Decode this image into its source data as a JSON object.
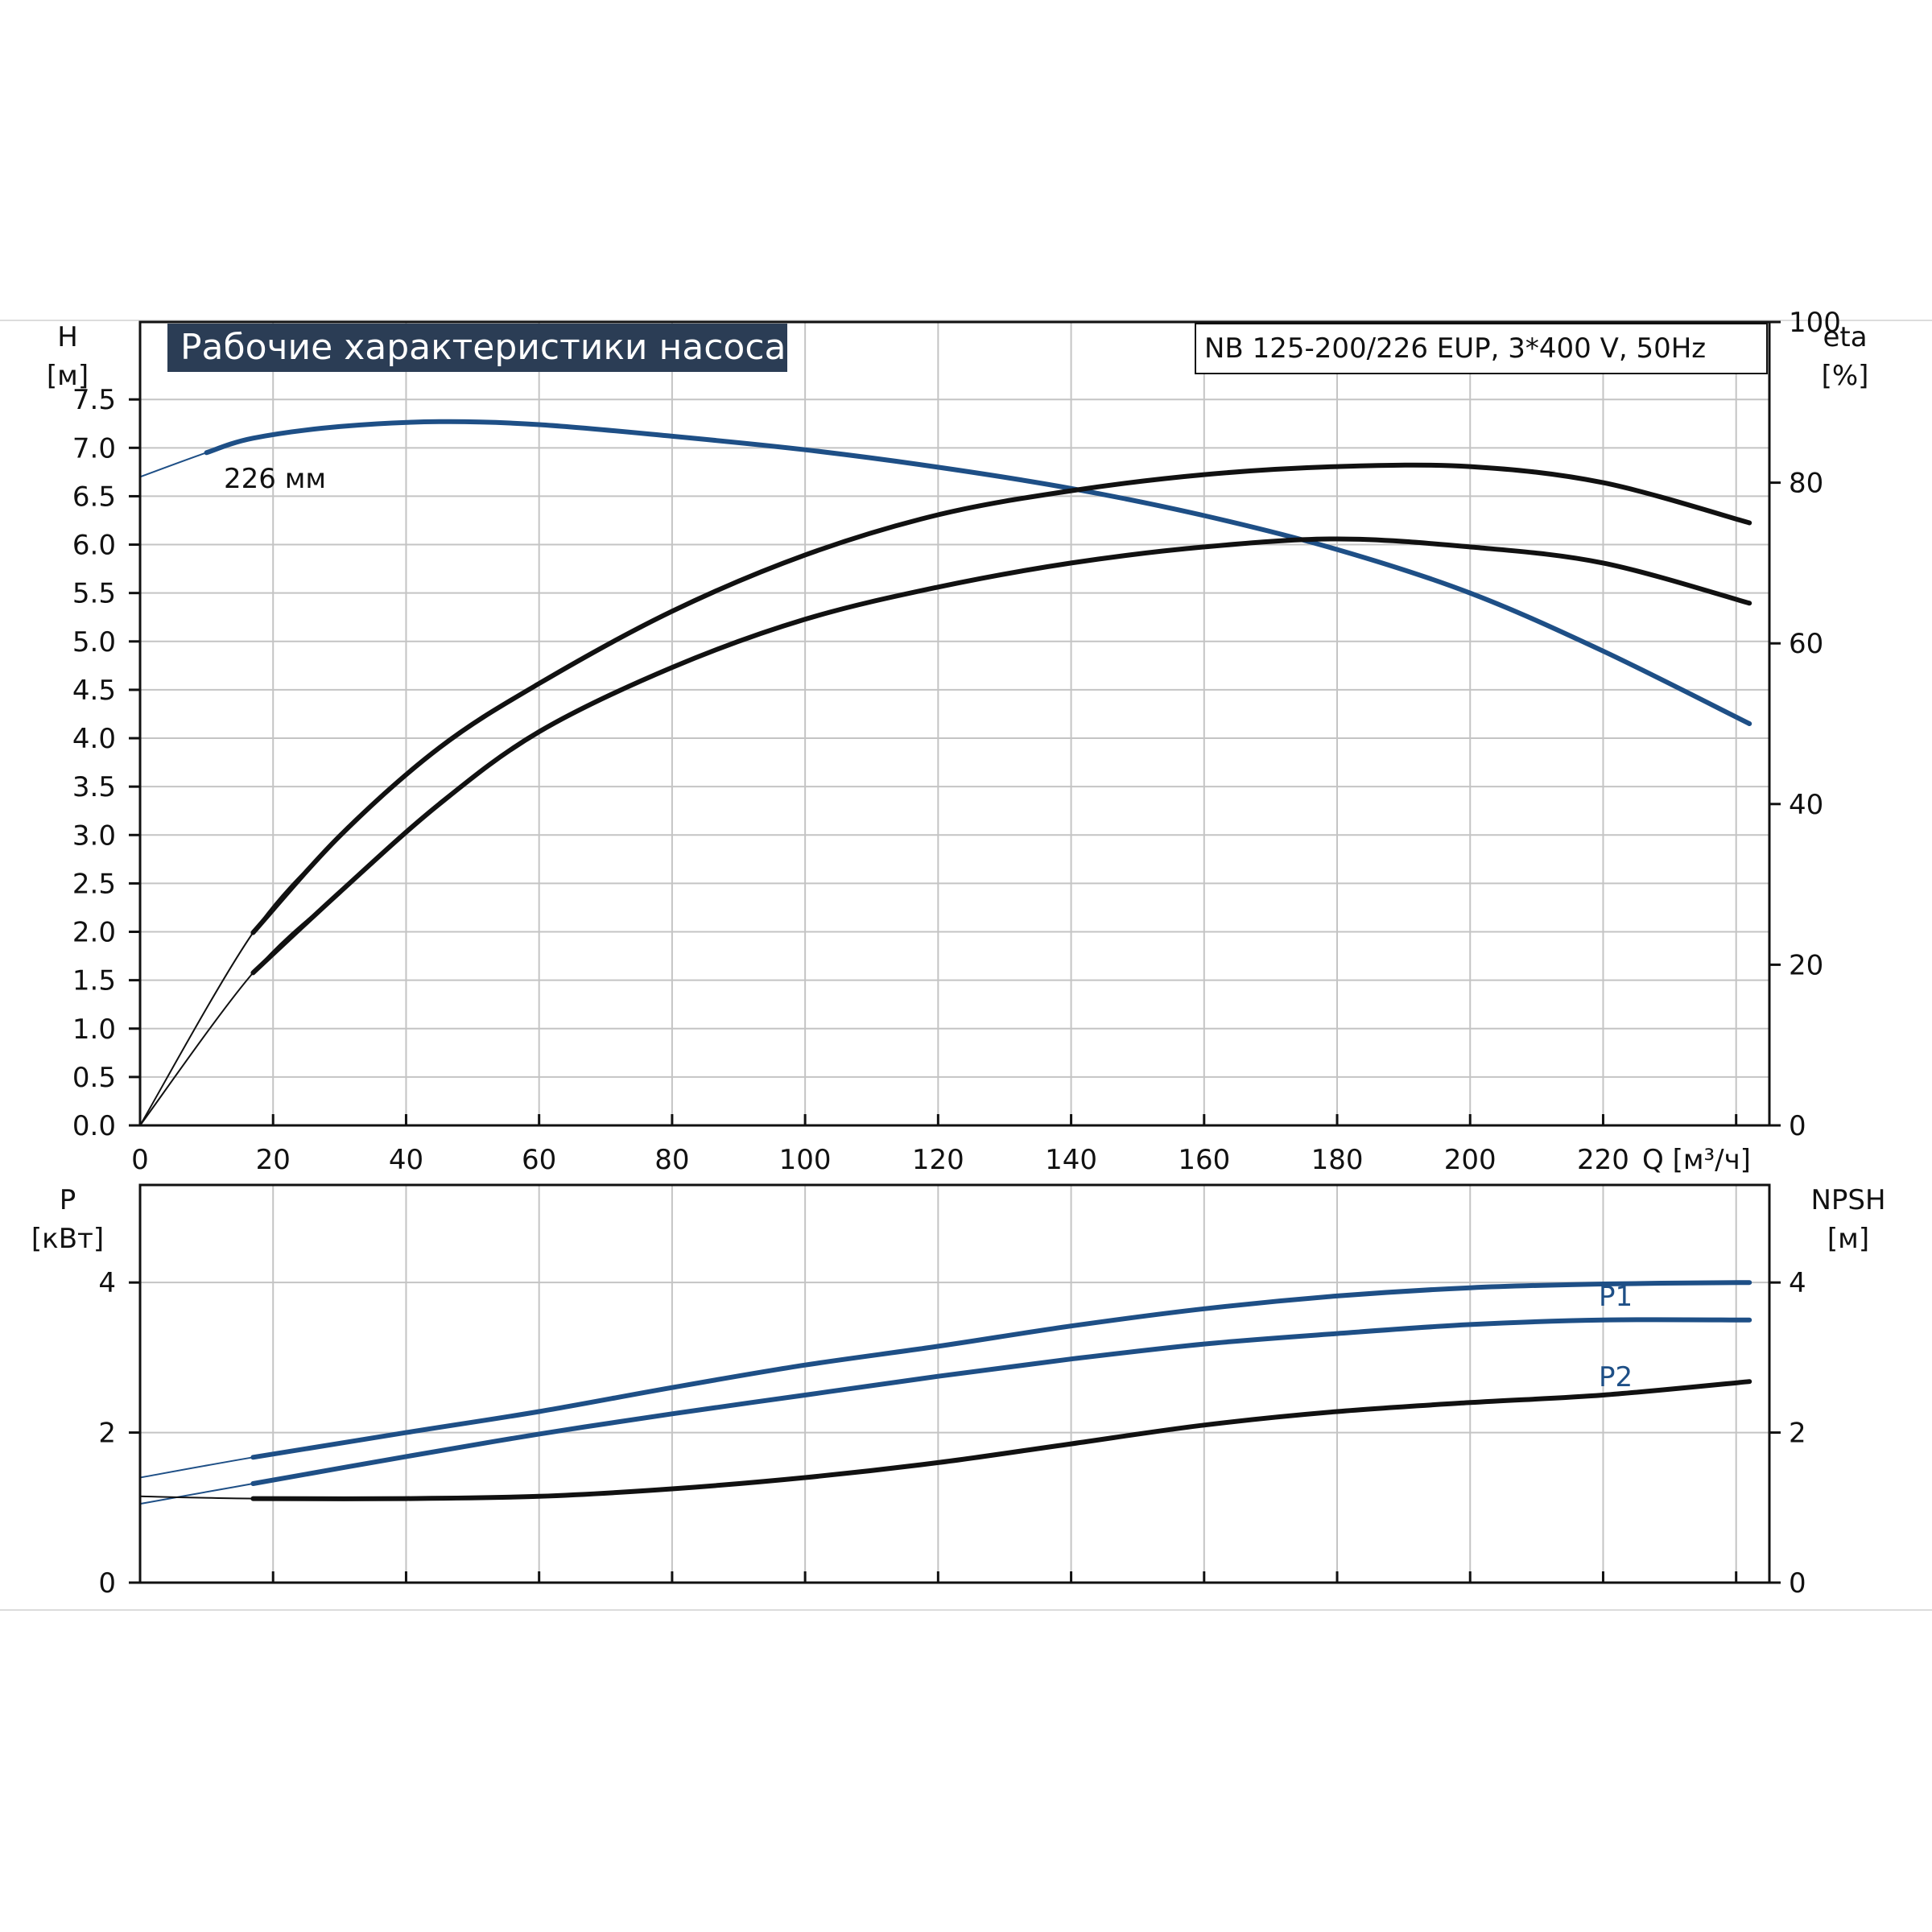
{
  "chart_data": [
    {
      "type": "line",
      "title": "Рабочие характеристики насоса",
      "subtitle": "NB 125-200/226 EUP, 3*400 V, 50Hz",
      "xlabel": "Q [м³/ч]",
      "xlim": [
        0,
        245
      ],
      "x_ticks": [
        0,
        20,
        40,
        60,
        80,
        100,
        120,
        140,
        160,
        180,
        200,
        220
      ],
      "ylabel_left": [
        "H",
        "[м]"
      ],
      "ylim_left": [
        0,
        8.3
      ],
      "y_ticks_left": [
        "0.0",
        "0.5",
        "1.0",
        "1.5",
        "2.0",
        "2.5",
        "3.0",
        "3.5",
        "4.0",
        "4.5",
        "5.0",
        "5.5",
        "6.0",
        "6.5",
        "7.0",
        "7.5"
      ],
      "ylabel_right": [
        "eta",
        "[%]"
      ],
      "ylim_right": [
        0,
        100
      ],
      "y_ticks_right": [
        "0",
        "20",
        "40",
        "60",
        "80",
        "100"
      ],
      "grid": true,
      "series": [
        {
          "name": "226 мм",
          "axis": "left",
          "color": "#1e4f86",
          "x": [
            0,
            10,
            17,
            30,
            45,
            60,
            80,
            100,
            120,
            140,
            160,
            180,
            200,
            220,
            242
          ],
          "y": [
            6.7,
            6.95,
            7.1,
            7.22,
            7.27,
            7.24,
            7.12,
            6.98,
            6.8,
            6.58,
            6.3,
            5.95,
            5.5,
            4.9,
            4.15
          ]
        },
        {
          "axis": "right",
          "color": "#111111",
          "x": [
            0,
            17,
            30,
            45,
            60,
            80,
            100,
            120,
            140,
            160,
            180,
            200,
            220,
            242
          ],
          "y": [
            0,
            24,
            36,
            47,
            55,
            64,
            71,
            76,
            79,
            81,
            82,
            82,
            80,
            75
          ]
        },
        {
          "axis": "right",
          "color": "#111111",
          "x": [
            0,
            17,
            30,
            45,
            60,
            80,
            100,
            120,
            140,
            160,
            180,
            200,
            220,
            242
          ],
          "y": [
            0,
            19,
            29,
            40,
            49,
            57,
            63,
            67,
            70,
            72,
            73,
            72,
            70,
            65
          ]
        }
      ]
    },
    {
      "type": "line",
      "xlim": [
        0,
        245
      ],
      "x_ticks": [
        0,
        20,
        40,
        60,
        80,
        100,
        120,
        140,
        160,
        180,
        200,
        220
      ],
      "ylabel_left": [
        "P",
        "[кВт]"
      ],
      "ylim_left": [
        0,
        5.3
      ],
      "y_ticks_left": [
        "0",
        "2",
        "4"
      ],
      "ylabel_right": [
        "NPSH",
        "[м]"
      ],
      "ylim_right": [
        0,
        5.3
      ],
      "y_ticks_right": [
        "0",
        "2",
        "4"
      ],
      "grid": true,
      "series": [
        {
          "name": "P1",
          "axis": "left",
          "color": "#1e4f86",
          "x": [
            0,
            17,
            40,
            60,
            80,
            100,
            120,
            140,
            160,
            180,
            200,
            220,
            242
          ],
          "y": [
            1.4,
            1.67,
            2.0,
            2.28,
            2.6,
            2.9,
            3.15,
            3.42,
            3.65,
            3.82,
            3.93,
            3.98,
            4.0
          ]
        },
        {
          "name": "P2",
          "axis": "left",
          "color": "#1e4f86",
          "x": [
            0,
            17,
            40,
            60,
            80,
            100,
            120,
            140,
            160,
            180,
            200,
            220,
            242
          ],
          "y": [
            1.05,
            1.32,
            1.68,
            1.98,
            2.25,
            2.5,
            2.75,
            2.98,
            3.18,
            3.32,
            3.44,
            3.5,
            3.5
          ]
        },
        {
          "axis": "right",
          "color": "#111111",
          "x": [
            0,
            17,
            40,
            60,
            80,
            100,
            120,
            140,
            160,
            180,
            200,
            220,
            242
          ],
          "y": [
            1.15,
            1.12,
            1.12,
            1.15,
            1.25,
            1.4,
            1.6,
            1.85,
            2.1,
            2.28,
            2.4,
            2.5,
            2.68
          ]
        }
      ]
    }
  ]
}
